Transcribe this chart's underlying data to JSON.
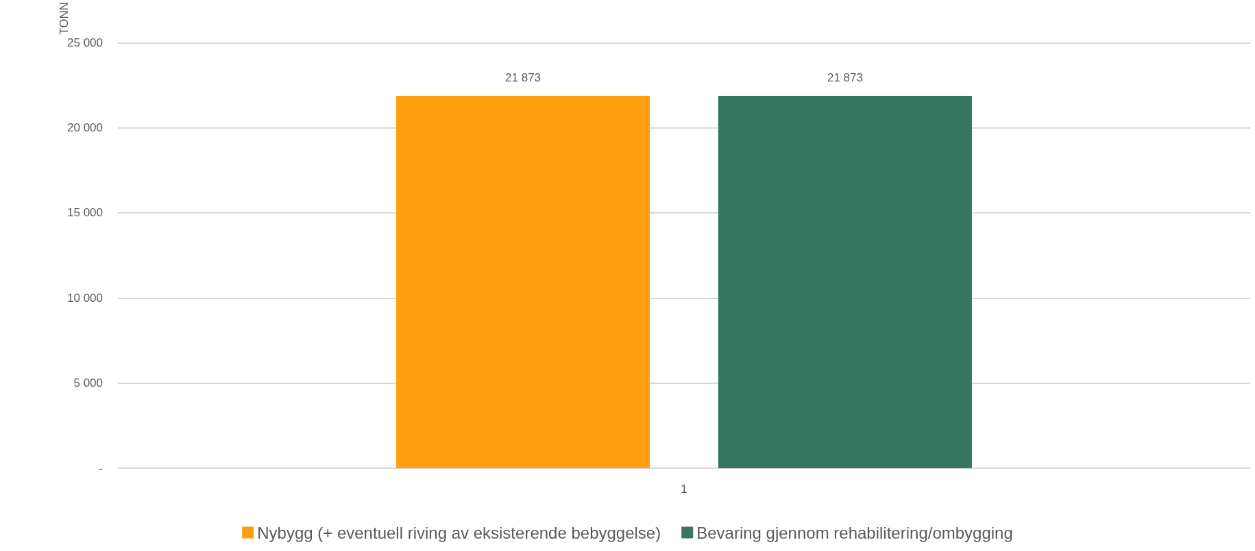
{
  "chart_data": {
    "type": "bar",
    "ylabel": "TONN",
    "categories": [
      "1"
    ],
    "series": [
      {
        "name": "Nybygg (+ eventuell riving av eksisterende bebyggelse)",
        "color": "#ff9e0f",
        "values": [
          21873
        ],
        "value_labels": [
          "21 873"
        ]
      },
      {
        "name": "Bevaring gjennom rehabilitering/ombygging",
        "color": "#367762",
        "values": [
          21873
        ],
        "value_labels": [
          "21 873"
        ]
      }
    ],
    "ylim": [
      0,
      25000
    ],
    "yticks": [
      {
        "value": 0,
        "label": "-"
      },
      {
        "value": 5000,
        "label": "5 000"
      },
      {
        "value": 10000,
        "label": "10 000"
      },
      {
        "value": 15000,
        "label": "15 000"
      },
      {
        "value": 20000,
        "label": "20 000"
      },
      {
        "value": 25000,
        "label": "25 000"
      }
    ],
    "grid": "y",
    "legend": "bottom"
  }
}
